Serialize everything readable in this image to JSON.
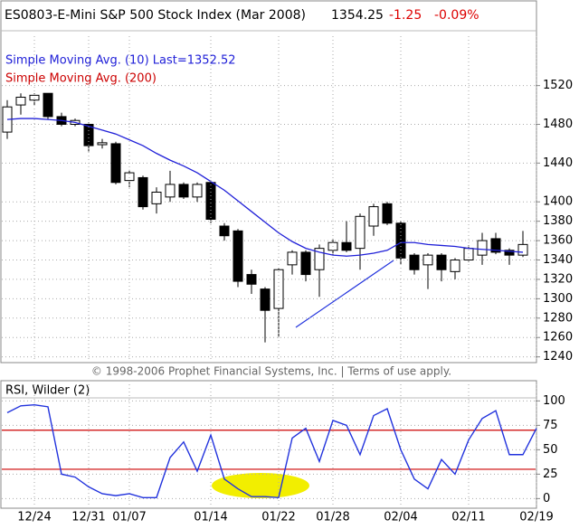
{
  "chart_data": [
    {
      "type": "candlestick",
      "title": "ES0803-E-Mini S&P 500 Stock Index (Mar 2008)",
      "quote": {
        "last": 1354.25,
        "change": -1.25,
        "change_pct": {
          "value": -0.09,
          "label": "-0.09%"
        }
      },
      "footer": "© 1998-2006 Prophet Financial Systems, Inc. | Terms of use apply.",
      "open": [
        1472,
        1500,
        1505,
        1512,
        1488,
        1480,
        1480,
        1459,
        1460,
        1422,
        1425,
        1398,
        1405,
        1418,
        1405,
        1420,
        1375,
        1370,
        1325,
        1310,
        1290,
        1335,
        1348,
        1330,
        1350,
        1358,
        1352,
        1375,
        1398,
        1378,
        1345,
        1335,
        1345,
        1328,
        1340,
        1345,
        1362,
        1350,
        1345,
        null
      ],
      "high": [
        1505,
        1512,
        1512,
        1512,
        1492,
        1486,
        1482,
        1465,
        1462,
        1433,
        1427,
        1415,
        1432,
        1420,
        1420,
        1422,
        1378,
        1372,
        1330,
        1312,
        1332,
        1350,
        1350,
        1356,
        1362,
        1380,
        1388,
        1398,
        1400,
        1380,
        1347,
        1347,
        1347,
        1342,
        1355,
        1368,
        1368,
        1352,
        1370,
        null
      ],
      "low": [
        1465,
        1490,
        1500,
        1485,
        1478,
        1478,
        1452,
        1455,
        1418,
        1415,
        1392,
        1388,
        1400,
        1403,
        1400,
        1378,
        1360,
        1312,
        1305,
        1255,
        1260,
        1325,
        1318,
        1302,
        1345,
        1348,
        1330,
        1365,
        1376,
        1335,
        1325,
        1310,
        1318,
        1320,
        1338,
        1335,
        1346,
        1335,
        1343,
        null
      ],
      "close": [
        1498,
        1508,
        1510,
        1488,
        1480,
        1484,
        1458,
        1461,
        1420,
        1430,
        1395,
        1410,
        1418,
        1405,
        1418,
        1382,
        1365,
        1318,
        1315,
        1288,
        1330,
        1348,
        1325,
        1352,
        1358,
        1350,
        1385,
        1395,
        1378,
        1342,
        1330,
        1345,
        1330,
        1340,
        1352,
        1360,
        1348,
        1345,
        1356,
        null
      ],
      "series": [
        {
          "name": "Simple Moving Avg. (10) Last=1352.52",
          "color": "#2020d8",
          "values": [
            1485,
            1486,
            1486,
            1485,
            1484,
            1482,
            1478,
            1474,
            1470,
            1464,
            1458,
            1450,
            1443,
            1437,
            1430,
            1421,
            1412,
            1401,
            1390,
            1379,
            1368,
            1359,
            1352,
            1348,
            1345,
            1344,
            1345,
            1347,
            1350,
            1358,
            1358,
            1356,
            1355,
            1354,
            1352,
            1351,
            1350,
            1349,
            1348,
            null
          ]
        },
        {
          "name": "Simple Moving Avg. (200)",
          "color": "#cc0000"
        }
      ],
      "ylim": [
        1235,
        1571
      ],
      "yticks": [
        1240,
        1260,
        1280,
        1300,
        1320,
        1340,
        1360,
        1380,
        1400,
        1440,
        1480,
        1520
      ],
      "grid": true
    },
    {
      "type": "line",
      "title": "RSI, Wilder (2)",
      "categories": [
        null,
        null,
        "12/24",
        null,
        null,
        null,
        "12/31",
        null,
        null,
        "01/07",
        null,
        null,
        null,
        null,
        null,
        "01/14",
        null,
        null,
        null,
        null,
        "01/22",
        null,
        null,
        null,
        "01/28",
        null,
        null,
        null,
        null,
        "02/04",
        null,
        null,
        null,
        null,
        "02/11",
        null,
        null,
        null,
        null,
        "02/19"
      ],
      "series": [
        {
          "name": "RSI, Wilder (2)",
          "color": "#2233dd",
          "values": [
            88,
            95,
            96,
            94,
            25,
            22,
            12,
            5,
            3,
            5,
            1,
            1,
            42,
            58,
            28,
            65,
            20,
            10,
            2,
            2,
            1,
            62,
            72,
            38,
            80,
            75,
            45,
            85,
            92,
            50,
            20,
            10,
            40,
            25,
            60,
            82,
            90,
            45,
            45,
            72
          ]
        }
      ],
      "reference_lines": [
        30,
        70
      ],
      "ylim": [
        -8,
        117
      ],
      "yticks": [
        0,
        25,
        50,
        75,
        100
      ],
      "grid": true
    }
  ]
}
